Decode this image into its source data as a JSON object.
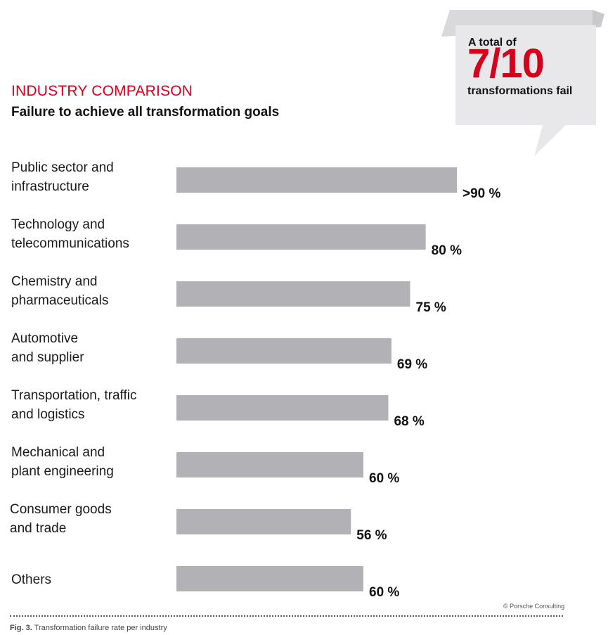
{
  "heading": "INDUSTRY COMPARISON",
  "subheading": "Failure to achieve all transformation goals",
  "callout": {
    "pre": "A total of",
    "big": "7/10",
    "post": "transformations fail"
  },
  "colors": {
    "accent": "#d5001c",
    "bar": "#b2b1b6",
    "callout_bg": "#e8e8ea"
  },
  "chart_data": {
    "type": "bar",
    "orientation": "horizontal",
    "categories": [
      [
        "Public sector and",
        "infrastructure"
      ],
      [
        "Technology and",
        "telecommunications"
      ],
      [
        "Chemistry and",
        "pharmaceuticals"
      ],
      [
        "Automotive",
        "and supplier"
      ],
      [
        "Transportation, traffic",
        "and logistics"
      ],
      [
        "Mechanical and",
        "plant engineering"
      ],
      [
        "Consumer goods",
        "and trade"
      ],
      [
        "Others"
      ]
    ],
    "values": [
      90,
      80,
      75,
      69,
      68,
      60,
      56,
      60
    ],
    "value_labels": [
      ">90 %",
      "80 %",
      "75 %",
      "69 %",
      "68 %",
      "60 %",
      "56 %",
      "60 %"
    ],
    "xlim": [
      0,
      100
    ],
    "grid": false,
    "legend": "none"
  },
  "copyright": "© Porsche Consulting",
  "caption": {
    "label": "Fig. 3.",
    "text": " Transformation failure rate per industry"
  }
}
